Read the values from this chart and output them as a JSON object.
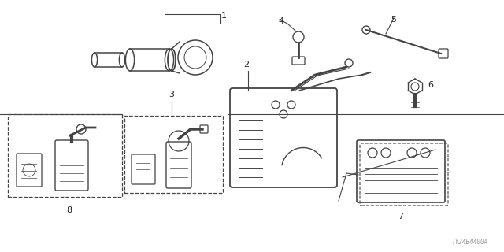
{
  "bg_color": "#ffffff",
  "line_color": "#444444",
  "text_color": "#222222",
  "watermark": "TY24B4400A",
  "watermark_color": "#999999",
  "fig_width": 6.4,
  "fig_height": 3.2,
  "dpi": 100
}
